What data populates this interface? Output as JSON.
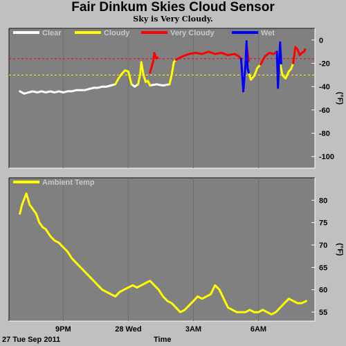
{
  "header": {
    "title": "Fair Dinkum Skies Cloud Sensor",
    "subtitle": "Sky is Very Cloudy."
  },
  "footer": {
    "date": "27 Tue Sep 2011",
    "xlabel": "Time"
  },
  "x_ticks": [
    "9PM",
    "28 Wed",
    "3AM",
    "6AM"
  ],
  "colors": {
    "plot_bg": "#808080",
    "page_bg": "#c0c0c0",
    "clear": "#ffffff",
    "cloudy": "#ffff00",
    "very_cloudy": "#ff0000",
    "wet": "#0000ff",
    "ambient": "#ffff00"
  },
  "chart_data": [
    {
      "type": "line",
      "unit": "(°F)",
      "ylim": [
        -110,
        10
      ],
      "y_ticks": [
        0,
        -20,
        -40,
        -60,
        -80,
        -100
      ],
      "reference_lines": [
        {
          "value": -16,
          "color": "#ff0000",
          "style": "dashed"
        },
        {
          "value": -30,
          "color": "#ffff00",
          "style": "dashed"
        }
      ],
      "series": [
        {
          "name": "Clear",
          "color": "#ffffff",
          "segments": [
            [
              [
                19.0,
                -44
              ],
              [
                19.2,
                -46
              ],
              [
                19.4,
                -45
              ],
              [
                19.6,
                -44
              ],
              [
                19.8,
                -45
              ],
              [
                20.0,
                -44
              ],
              [
                20.2,
                -45
              ],
              [
                20.4,
                -44
              ],
              [
                20.6,
                -45
              ],
              [
                20.8,
                -44
              ],
              [
                21.0,
                -45
              ],
              [
                21.2,
                -44
              ],
              [
                21.4,
                -44
              ],
              [
                21.6,
                -43
              ],
              [
                21.8,
                -43
              ],
              [
                22.0,
                -43
              ],
              [
                22.2,
                -42
              ],
              [
                22.4,
                -41
              ],
              [
                22.6,
                -41
              ],
              [
                22.8,
                -40
              ],
              [
                23.0,
                -40
              ],
              [
                23.2,
                -39
              ],
              [
                23.4,
                -38
              ]
            ],
            [
              [
                24.15,
                -38
              ],
              [
                24.3,
                -40
              ],
              [
                24.45,
                -38
              ]
            ],
            [
              [
                25.0,
                -39
              ],
              [
                25.3,
                -38
              ],
              [
                25.6,
                -39
              ],
              [
                25.9,
                -38
              ]
            ]
          ]
        },
        {
          "name": "Cloudy",
          "color": "#ffff00",
          "segments": [
            [
              [
                23.4,
                -38
              ],
              [
                23.55,
                -33
              ],
              [
                23.7,
                -29
              ],
              [
                23.85,
                -26
              ],
              [
                24.0,
                -27
              ],
              [
                24.15,
                -38
              ]
            ],
            [
              [
                24.45,
                -38
              ],
              [
                24.55,
                -29
              ],
              [
                24.6,
                -19
              ],
              [
                24.7,
                -30
              ],
              [
                24.8,
                -36
              ],
              [
                24.9,
                -35
              ],
              [
                25.0,
                -39
              ]
            ],
            [
              [
                25.9,
                -38
              ],
              [
                26.0,
                -30
              ],
              [
                26.1,
                -19
              ],
              [
                26.2,
                -17
              ]
            ],
            [
              [
                29.55,
                -28
              ],
              [
                29.65,
                -34
              ],
              [
                29.8,
                -31
              ],
              [
                29.95,
                -24
              ],
              [
                30.1,
                -21
              ]
            ],
            [
              [
                31.0,
                -20
              ],
              [
                31.1,
                -30
              ],
              [
                31.25,
                -33
              ],
              [
                31.4,
                -27
              ],
              [
                31.5,
                -25
              ],
              [
                31.6,
                -20
              ]
            ]
          ]
        },
        {
          "name": "Very Cloudy",
          "color": "#ff0000",
          "segments": [
            [
              [
                25.0,
                -28
              ],
              [
                25.15,
                -18
              ],
              [
                25.2,
                -11
              ],
              [
                25.3,
                -16
              ],
              [
                25.35,
                -15
              ]
            ],
            [
              [
                26.2,
                -17
              ],
              [
                26.5,
                -14
              ],
              [
                26.8,
                -12
              ],
              [
                27.1,
                -11
              ],
              [
                27.4,
                -12
              ],
              [
                27.7,
                -10
              ],
              [
                28.0,
                -12
              ],
              [
                28.3,
                -11
              ],
              [
                28.6,
                -13
              ],
              [
                28.9,
                -12
              ],
              [
                29.1,
                -14
              ],
              [
                29.2,
                -16
              ]
            ],
            [
              [
                29.45,
                -4
              ],
              [
                29.55,
                -18
              ]
            ],
            [
              [
                30.1,
                -21
              ],
              [
                30.3,
                -14
              ],
              [
                30.5,
                -11
              ],
              [
                30.7,
                -12
              ],
              [
                30.85,
                -10
              ]
            ],
            [
              [
                31.6,
                -20
              ],
              [
                31.7,
                -6
              ],
              [
                31.8,
                -8
              ],
              [
                31.9,
                -13
              ],
              [
                32.0,
                -11
              ],
              [
                32.1,
                -10
              ],
              [
                32.15,
                -8
              ]
            ]
          ]
        },
        {
          "name": "Wet",
          "color": "#0000ff",
          "segments": [
            [
              [
                29.2,
                -16
              ],
              [
                29.3,
                -44
              ],
              [
                29.4,
                -22
              ],
              [
                29.45,
                -1
              ],
              [
                29.5,
                -24
              ],
              [
                29.55,
                -28
              ]
            ],
            [
              [
                30.85,
                -10
              ],
              [
                30.9,
                -41
              ],
              [
                30.95,
                -20
              ],
              [
                31.0,
                -2
              ],
              [
                31.05,
                -20
              ]
            ]
          ]
        }
      ]
    },
    {
      "type": "line",
      "unit": "(°F)",
      "ylim": [
        53,
        85
      ],
      "y_ticks": [
        80,
        75,
        70,
        65,
        60,
        55
      ],
      "series": [
        {
          "name": "Ambient Temp",
          "color": "#ffff00",
          "x": [
            19.0,
            19.1,
            19.3,
            19.45,
            19.6,
            19.75,
            19.9,
            20.05,
            20.2,
            20.4,
            20.6,
            20.8,
            21.0,
            21.2,
            21.4,
            21.6,
            21.8,
            22.0,
            22.2,
            22.4,
            22.6,
            22.8,
            23.0,
            23.2,
            23.4,
            23.6,
            23.8,
            24.0,
            24.2,
            24.4,
            24.6,
            24.8,
            25.0,
            25.2,
            25.4,
            25.6,
            25.8,
            26.0,
            26.2,
            26.4,
            26.6,
            26.8,
            27.0,
            27.2,
            27.4,
            27.6,
            27.8,
            28.0,
            28.2,
            28.4,
            28.6,
            28.8,
            29.0,
            29.2,
            29.4,
            29.6,
            29.8,
            30.0,
            30.2,
            30.4,
            30.6,
            30.8,
            31.0,
            31.2,
            31.4,
            31.6,
            31.8,
            32.0,
            32.2
          ],
          "values": [
            77,
            79,
            81.5,
            79,
            78,
            77,
            75,
            74,
            73.5,
            72,
            71,
            70.5,
            69.5,
            68.5,
            67,
            66,
            65,
            64,
            63,
            62,
            61,
            60,
            59.5,
            59,
            58.5,
            59.5,
            60,
            60.5,
            61,
            60.5,
            61,
            61.5,
            62,
            61,
            60,
            58.5,
            57.5,
            57,
            56,
            55,
            55.5,
            56.5,
            57.5,
            58.5,
            58,
            58.5,
            59,
            61,
            60,
            58,
            56,
            55.5,
            55,
            55,
            55,
            55.5,
            55,
            55,
            55.5,
            55,
            54.5,
            55,
            56,
            57,
            58,
            57.5,
            57,
            57,
            57.5
          ]
        }
      ]
    }
  ]
}
